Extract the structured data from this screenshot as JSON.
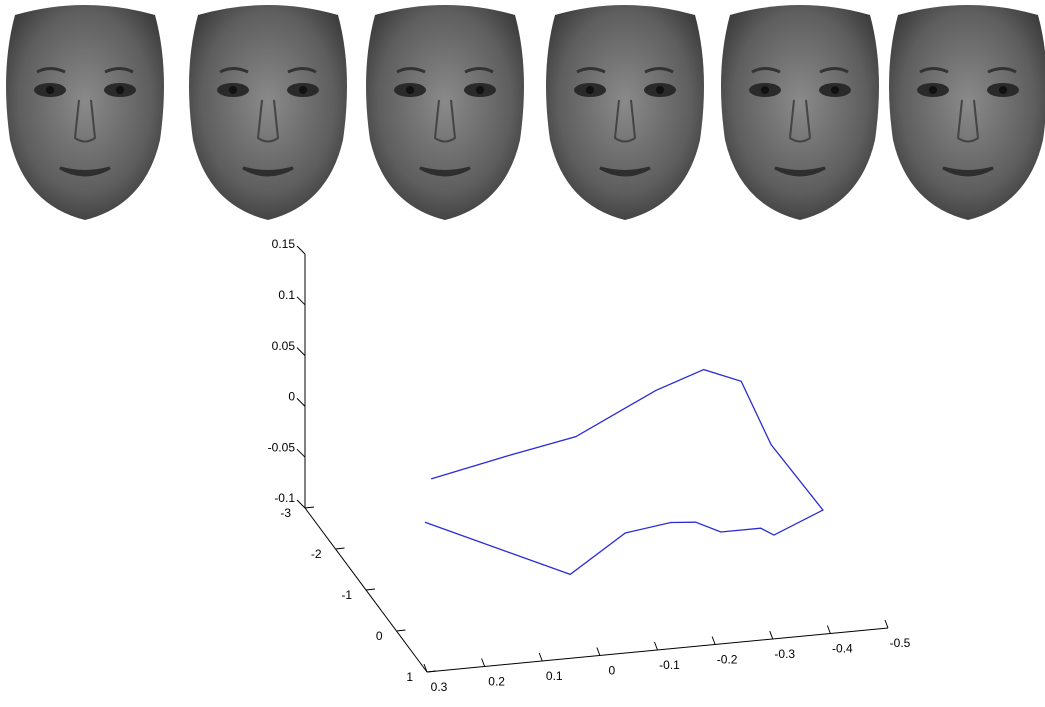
{
  "chart_data": {
    "type": "line3d",
    "color": "#2b2bd6",
    "x": [
      0.134,
      -0.003,
      -0.117,
      -0.256,
      -0.339,
      -0.404,
      -0.403,
      -0.44,
      -0.355,
      -0.332,
      -0.263,
      -0.219,
      -0.176,
      -0.097,
      0.025,
      0.277
    ],
    "y": [
      -2,
      -2,
      -2,
      -2,
      -2,
      -2,
      -1,
      0,
      0,
      0,
      0,
      0,
      0,
      0,
      0.5,
      0.5
    ],
    "z": [
      -0.04,
      -0.024,
      -0.012,
      0.026,
      0.042,
      0.027,
      0.005,
      -0.021,
      -0.041,
      -0.033,
      -0.033,
      -0.021,
      -0.019,
      -0.025,
      -0.039,
      0.026
    ],
    "xlim": [
      0.3,
      -0.5
    ],
    "xticks": [
      0.3,
      0.2,
      0.1,
      0,
      -0.1,
      -0.2,
      -0.3,
      -0.4,
      -0.5
    ],
    "ylim": [
      1,
      -3
    ],
    "yticks": [
      1,
      0,
      -1,
      -2,
      -3
    ],
    "zlim": [
      -0.1,
      0.15
    ],
    "zticks": [
      -0.1,
      -0.05,
      0,
      0.05,
      0.1,
      0.15
    ]
  }
}
